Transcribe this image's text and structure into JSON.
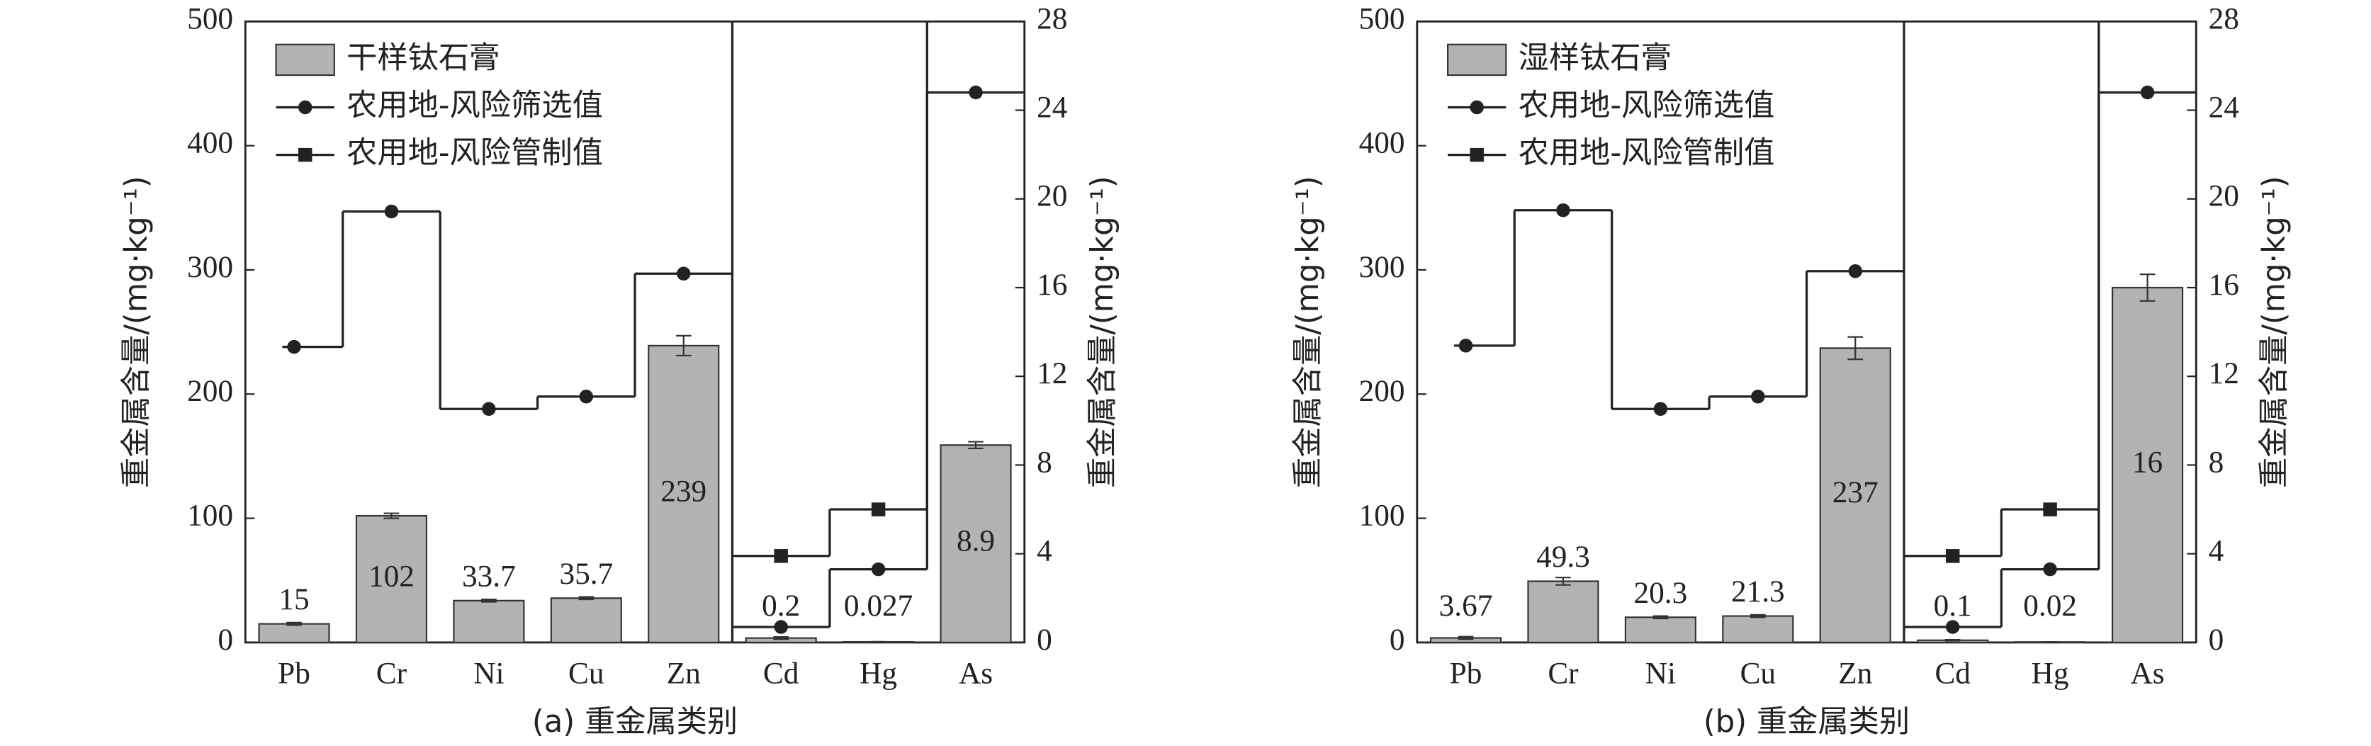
{
  "chart_data": [
    {
      "type": "bar",
      "xlabel": "(a) 重金属类别",
      "ylabel": "重金属含量/(mg·kg⁻¹)",
      "y2label": "重金属含量/(mg·kg⁻¹)",
      "categories": [
        "Pb",
        "Cr",
        "Ni",
        "Cu",
        "Zn",
        "Cd",
        "Hg",
        "As"
      ],
      "axis": [
        "y",
        "y",
        "y",
        "y",
        "y",
        "y2",
        "y2",
        "y2"
      ],
      "ylim": [
        0,
        500
      ],
      "yticks": [
        0,
        100,
        200,
        300,
        400,
        500
      ],
      "y2lim": [
        0,
        28
      ],
      "y2ticks": [
        0,
        4,
        8,
        12,
        16,
        20,
        24,
        28
      ],
      "series": [
        {
          "name": "干样钛石膏",
          "type": "bar",
          "color": "#b3b3b3",
          "values": [
            15,
            102,
            33.7,
            35.7,
            239,
            0.2,
            0.027,
            8.9
          ],
          "errors": [
            1,
            2,
            1,
            1,
            8,
            0.05,
            0.005,
            0.15
          ]
        },
        {
          "name": "农用地-风险筛选值",
          "type": "line",
          "marker": "circle",
          "color": "#222222",
          "values": [
            238,
            347,
            188,
            198,
            297,
            0.7,
            3.3,
            24.8
          ]
        },
        {
          "name": "农用地-风险管制值",
          "type": "line",
          "marker": "square",
          "color": "#222222",
          "values": [
            null,
            null,
            null,
            null,
            null,
            3.9,
            6.0,
            null
          ]
        }
      ]
    },
    {
      "type": "bar",
      "xlabel": "(b) 重金属类别",
      "ylabel": "重金属含量/(mg·kg⁻¹)",
      "y2label": "重金属含量/(mg·kg⁻¹)",
      "categories": [
        "Pb",
        "Cr",
        "Ni",
        "Cu",
        "Zn",
        "Cd",
        "Hg",
        "As"
      ],
      "axis": [
        "y",
        "y",
        "y",
        "y",
        "y",
        "y2",
        "y2",
        "y2"
      ],
      "ylim": [
        0,
        500
      ],
      "yticks": [
        0,
        100,
        200,
        300,
        400,
        500
      ],
      "y2lim": [
        0,
        28
      ],
      "y2ticks": [
        0,
        4,
        8,
        12,
        16,
        20,
        24,
        28
      ],
      "series": [
        {
          "name": "湿样钛石膏",
          "type": "bar",
          "color": "#b3b3b3",
          "values": [
            3.67,
            49.3,
            20.3,
            21.3,
            237,
            0.1,
            0.02,
            16
          ],
          "errors": [
            1,
            3,
            1,
            1,
            9,
            0.02,
            0.003,
            0.6
          ]
        },
        {
          "name": "农用地-风险筛选值",
          "type": "line",
          "marker": "circle",
          "color": "#222222",
          "values": [
            239,
            348,
            188,
            198,
            299,
            0.7,
            3.3,
            24.8
          ]
        },
        {
          "name": "农用地-风险管制值",
          "type": "line",
          "marker": "square",
          "color": "#222222",
          "values": [
            null,
            null,
            null,
            null,
            null,
            3.9,
            6.0,
            null
          ]
        }
      ]
    }
  ]
}
